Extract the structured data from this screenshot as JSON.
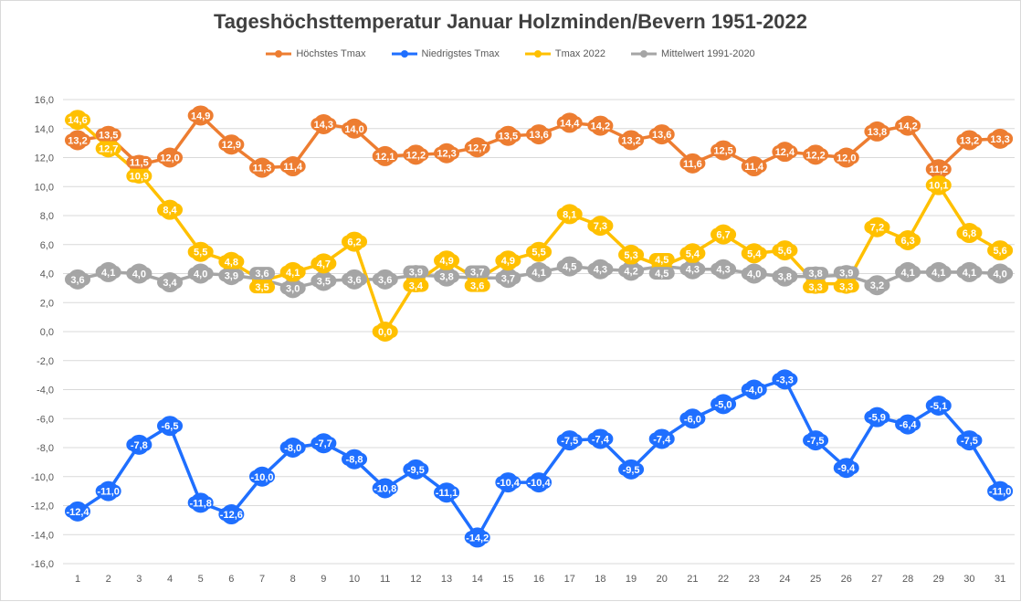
{
  "chart_data": {
    "type": "line",
    "title": "Tageshöchsttemperatur Januar Holzminden/Bevern 1951-2022",
    "xlabel": "",
    "ylabel": "",
    "ylim": [
      -16,
      16
    ],
    "yticks": [
      "16,0",
      "14,0",
      "12,0",
      "10,0",
      "8,0",
      "6,0",
      "4,0",
      "2,0",
      "0,0",
      "-2,0",
      "-4,0",
      "-6,0",
      "-8,0",
      "-10,0",
      "-12,0",
      "-14,0",
      "-16,0"
    ],
    "x": [
      1,
      2,
      3,
      4,
      5,
      6,
      7,
      8,
      9,
      10,
      11,
      12,
      13,
      14,
      15,
      16,
      17,
      18,
      19,
      20,
      21,
      22,
      23,
      24,
      25,
      26,
      27,
      28,
      29,
      30,
      31
    ],
    "legend_position": "top",
    "grid": true,
    "series": [
      {
        "name": "Höchstes Tmax",
        "color": "#ed7d31",
        "values": [
          13.2,
          13.5,
          11.5,
          12.0,
          14.9,
          12.9,
          11.3,
          11.4,
          14.3,
          14.0,
          12.1,
          12.2,
          12.3,
          12.7,
          13.5,
          13.6,
          14.4,
          14.2,
          13.2,
          13.6,
          11.6,
          12.5,
          11.4,
          12.4,
          12.2,
          12.0,
          13.8,
          14.2,
          11.2,
          13.2,
          13.3
        ]
      },
      {
        "name": "Niedrigstes Tmax",
        "color": "#1f6fff",
        "values": [
          -12.4,
          -11.0,
          -7.8,
          -6.5,
          -11.8,
          -12.6,
          -10.0,
          -8.0,
          -7.7,
          -8.8,
          -10.8,
          -9.5,
          -11.1,
          -14.2,
          -10.4,
          -10.4,
          -7.5,
          -7.4,
          -9.5,
          -7.4,
          -6.0,
          -5.0,
          -4.0,
          -3.3,
          -7.5,
          -9.4,
          -5.9,
          -6.4,
          -5.1,
          -7.5,
          -11.0
        ]
      },
      {
        "name": "Tmax 2022",
        "color": "#ffc000",
        "values": [
          14.6,
          12.7,
          10.9,
          8.4,
          5.5,
          4.8,
          3.5,
          4.1,
          4.7,
          6.2,
          0.0,
          3.4,
          4.9,
          3.6,
          4.9,
          5.5,
          8.1,
          7.3,
          5.3,
          4.5,
          5.4,
          6.7,
          5.4,
          5.6,
          3.3,
          3.3,
          7.2,
          6.3,
          10.1,
          6.8,
          5.6
        ]
      },
      {
        "name": "Mittelwert 1991-2020",
        "color": "#a5a5a5",
        "values": [
          3.6,
          4.1,
          4.0,
          3.4,
          4.0,
          3.9,
          3.6,
          3.0,
          3.5,
          3.6,
          3.6,
          3.9,
          3.8,
          3.7,
          3.7,
          4.1,
          4.5,
          4.3,
          4.2,
          4.5,
          4.3,
          4.3,
          4.0,
          3.8,
          3.8,
          3.9,
          3.2,
          4.1,
          4.1,
          4.1,
          4.0
        ]
      }
    ]
  }
}
